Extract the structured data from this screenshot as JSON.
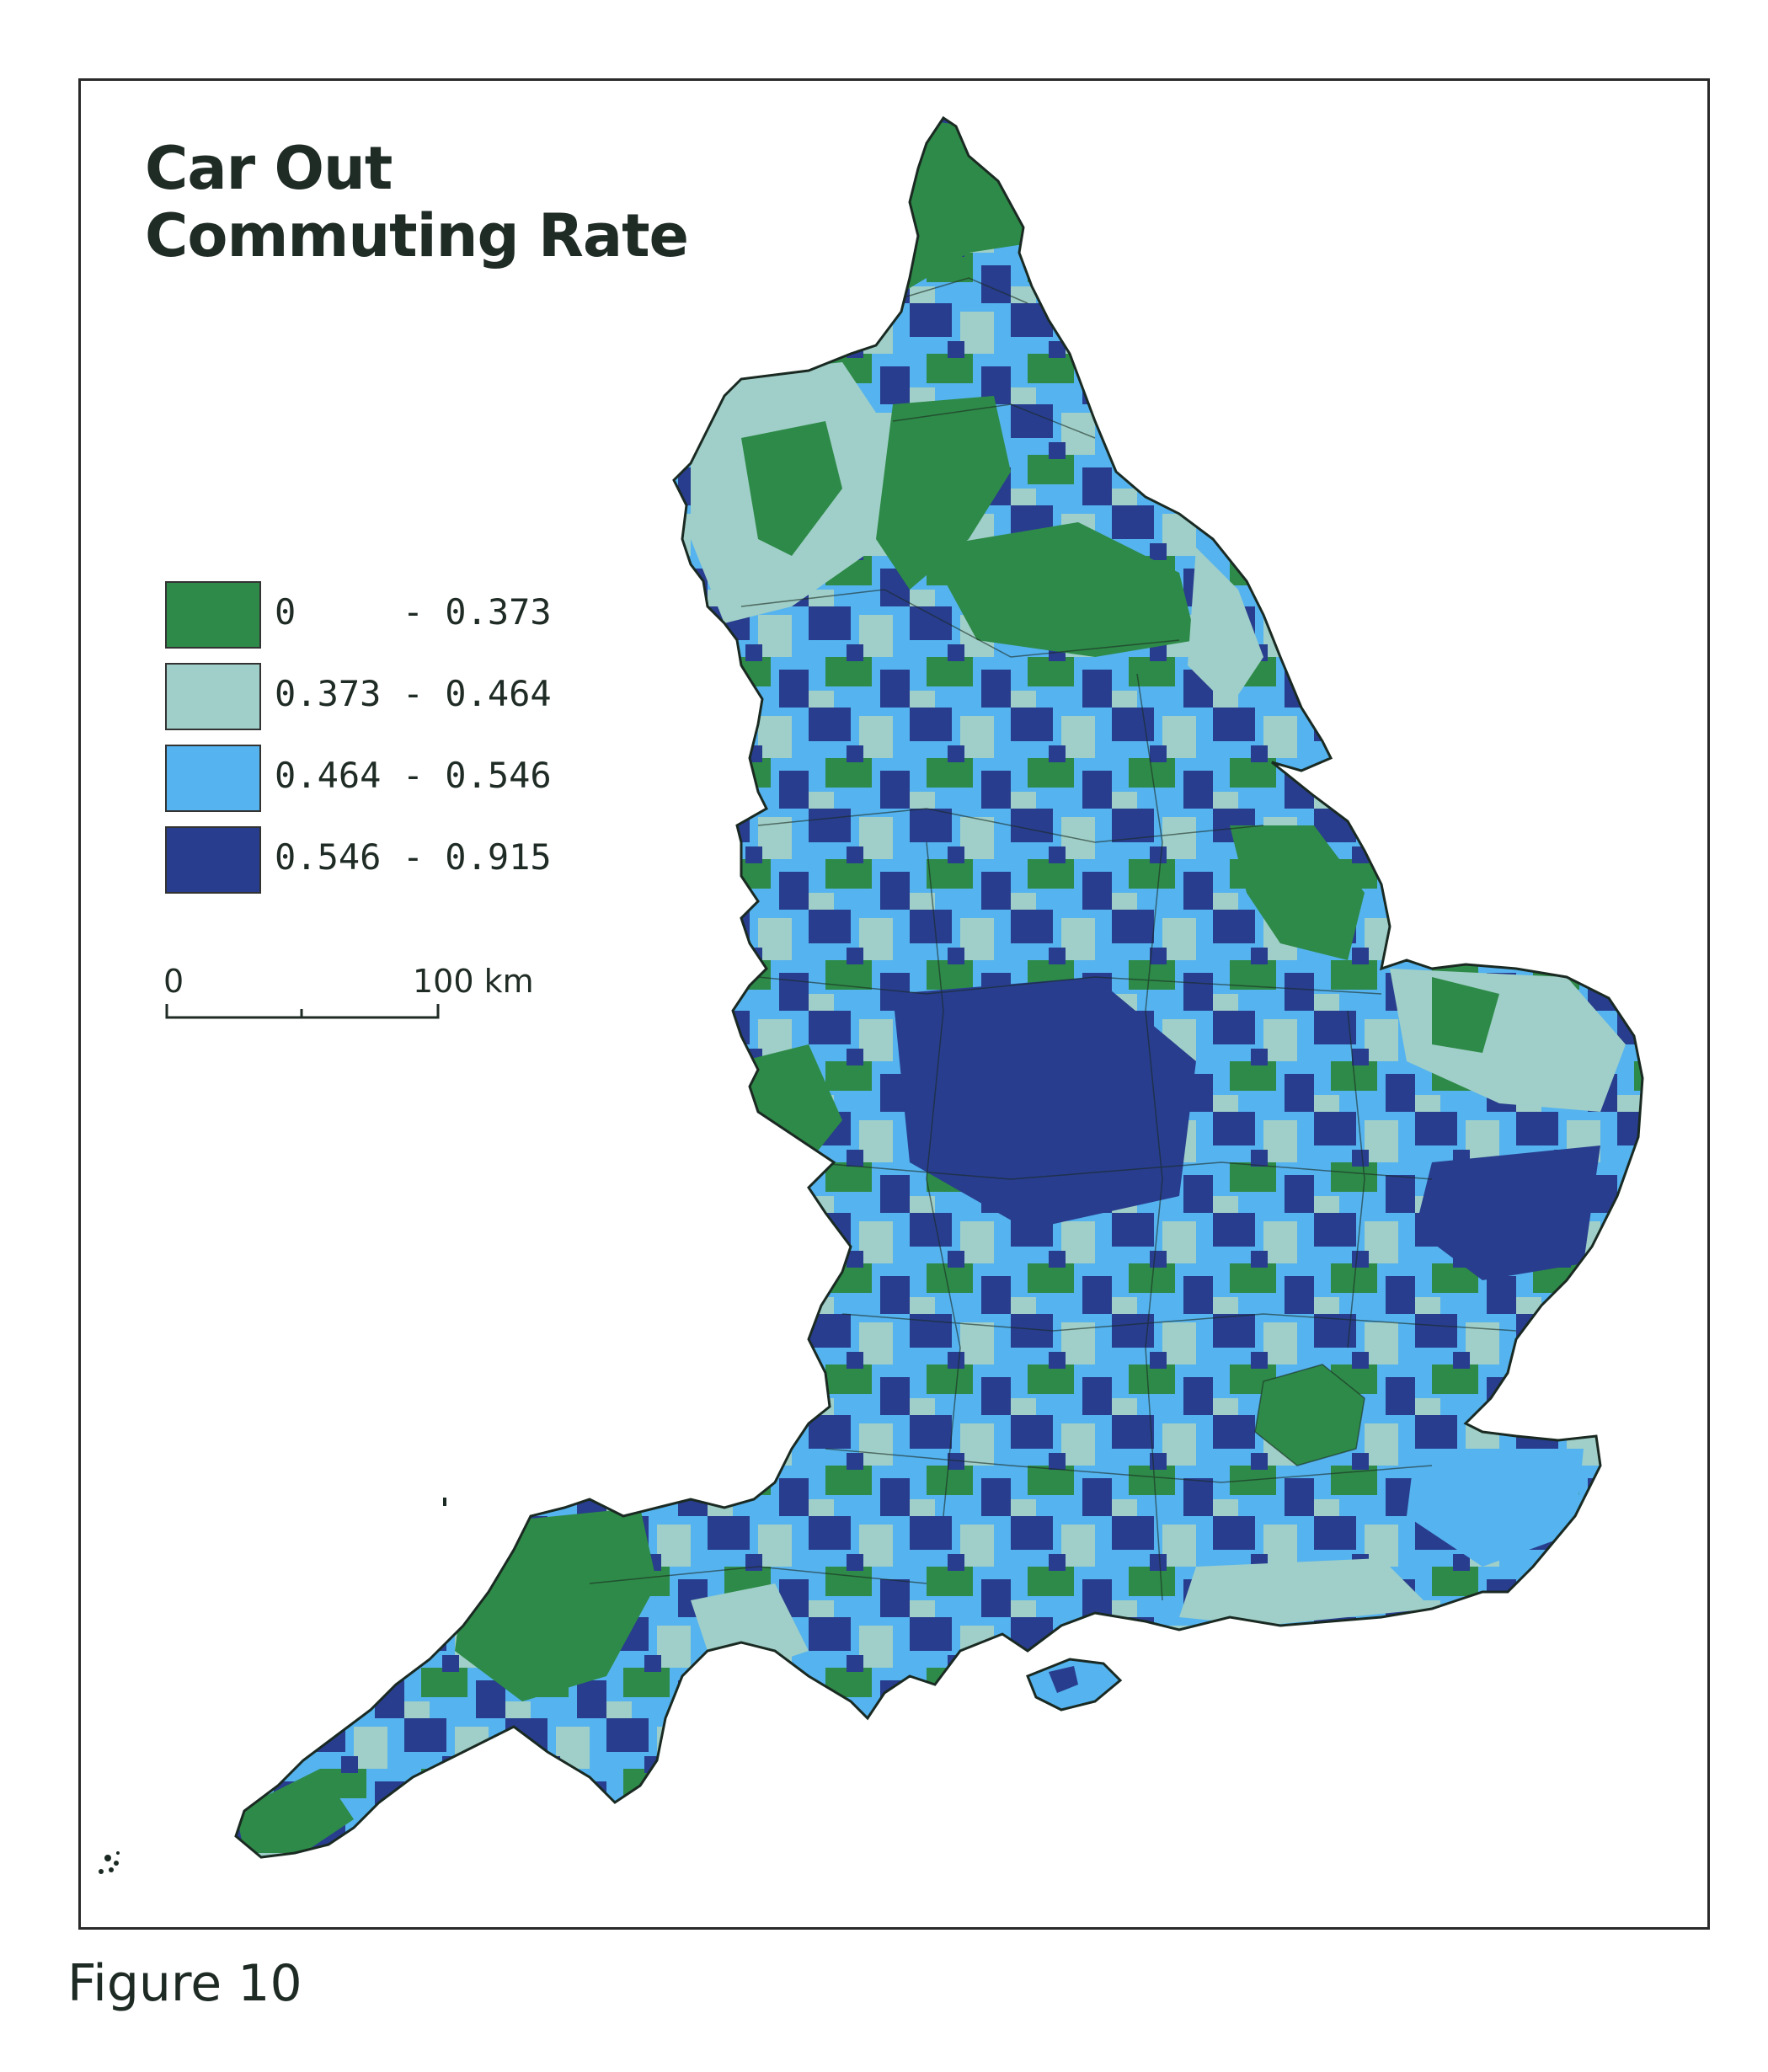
{
  "figure": {
    "caption": "Figure 10",
    "title_line1": "Car Out",
    "title_line2": "Commuting Rate"
  },
  "legend": {
    "items": [
      {
        "label": "0     - 0.373",
        "color": "#2e8a48"
      },
      {
        "label": "0.373 - 0.464",
        "color": "#9fcfc8"
      },
      {
        "label": "0.464 - 0.546",
        "color": "#55b3ef"
      },
      {
        "label": "0.546 - 0.915",
        "color": "#283d8e"
      }
    ]
  },
  "scale_bar": {
    "start_label": "0",
    "end_label": "100 km"
  },
  "map": {
    "region": "England",
    "background_color": "#ffffff",
    "boundary_color": "#1a2a22"
  }
}
